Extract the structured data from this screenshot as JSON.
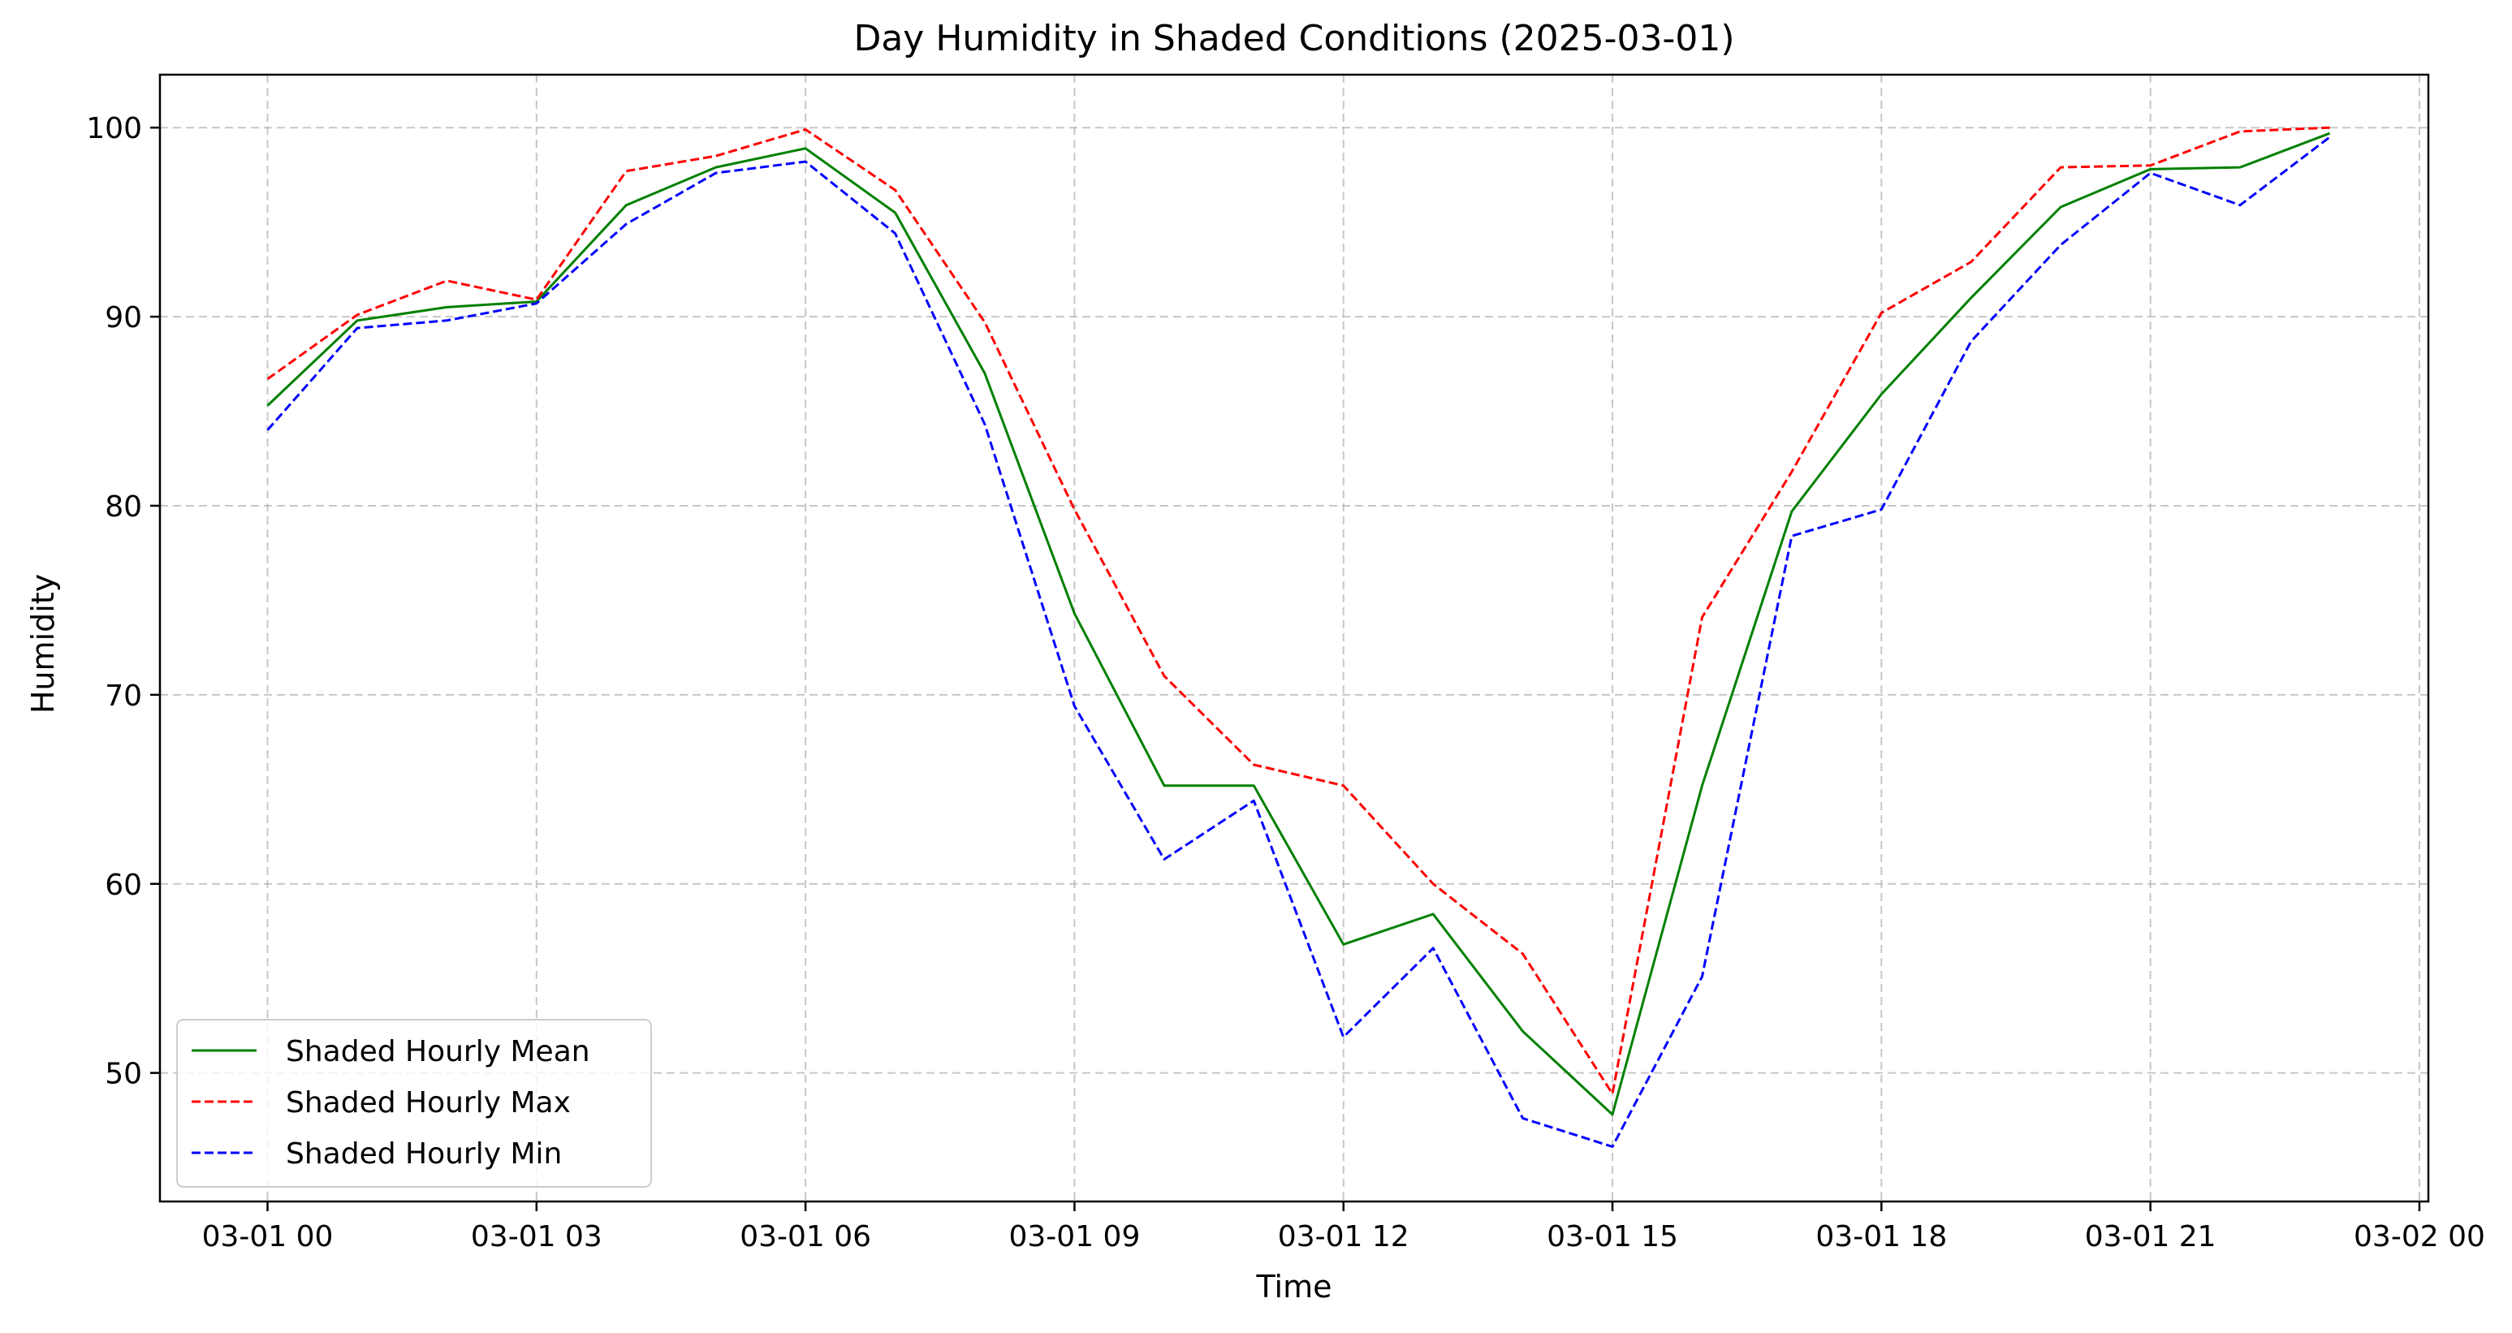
{
  "chart_data": {
    "type": "line",
    "title": "Day Humidity in Shaded Conditions (2025-03-01)",
    "xlabel": "Time",
    "ylabel": "Humidity",
    "x": [
      "03-01 00",
      "03-01 01",
      "03-01 02",
      "03-01 03",
      "03-01 04",
      "03-01 05",
      "03-01 06",
      "03-01 07",
      "03-01 08",
      "03-01 09",
      "03-01 10",
      "03-01 11",
      "03-01 12",
      "03-01 13",
      "03-01 14",
      "03-01 15",
      "03-01 16",
      "03-01 17",
      "03-01 18",
      "03-01 19",
      "03-01 20",
      "03-01 21",
      "03-01 22",
      "03-01 23"
    ],
    "x_hours": [
      0,
      1,
      2,
      3,
      4,
      5,
      6,
      7,
      8,
      9,
      10,
      11,
      12,
      13,
      14,
      15,
      16,
      17,
      18,
      19,
      20,
      21,
      22,
      23
    ],
    "xlim_hours": [
      -1.2,
      24.1
    ],
    "ylim": [
      43.2,
      102.8
    ],
    "xticks": [
      {
        "hour": 0,
        "label": "03-01 00"
      },
      {
        "hour": 3,
        "label": "03-01 03"
      },
      {
        "hour": 6,
        "label": "03-01 06"
      },
      {
        "hour": 9,
        "label": "03-01 09"
      },
      {
        "hour": 12,
        "label": "03-01 12"
      },
      {
        "hour": 15,
        "label": "03-01 15"
      },
      {
        "hour": 18,
        "label": "03-01 18"
      },
      {
        "hour": 21,
        "label": "03-01 21"
      },
      {
        "hour": 24,
        "label": "03-02 00"
      }
    ],
    "yticks": [
      {
        "value": 50,
        "label": "50"
      },
      {
        "value": 60,
        "label": "60"
      },
      {
        "value": 70,
        "label": "70"
      },
      {
        "value": 80,
        "label": "80"
      },
      {
        "value": 90,
        "label": "90"
      },
      {
        "value": 100,
        "label": "100"
      }
    ],
    "grid": true,
    "legend_position": "lower-left",
    "series": [
      {
        "name": "Shaded Hourly Mean",
        "color": "#008000",
        "style": "solid",
        "values": [
          85.3,
          89.8,
          90.5,
          90.8,
          95.9,
          97.9,
          98.9,
          95.5,
          87.0,
          74.3,
          65.2,
          65.2,
          56.8,
          58.4,
          52.2,
          47.8,
          65.2,
          79.7,
          85.9,
          91.0,
          95.8,
          97.8,
          97.9,
          99.7
        ]
      },
      {
        "name": "Shaded Hourly Max",
        "color": "#ff0000",
        "style": "dashed",
        "values": [
          86.7,
          90.1,
          91.9,
          90.9,
          97.7,
          98.5,
          99.9,
          96.7,
          89.7,
          79.8,
          71.0,
          66.3,
          65.2,
          60.0,
          56.3,
          48.9,
          74.1,
          81.8,
          90.2,
          92.9,
          97.9,
          98.0,
          99.8,
          100.0
        ]
      },
      {
        "name": "Shaded Hourly Min",
        "color": "#0000ff",
        "style": "dashed",
        "values": [
          84.0,
          89.4,
          89.8,
          90.7,
          94.9,
          97.6,
          98.2,
          94.4,
          84.3,
          69.4,
          61.3,
          64.4,
          51.9,
          56.6,
          47.6,
          46.1,
          55.1,
          78.4,
          79.8,
          88.7,
          93.8,
          97.6,
          95.9,
          99.5
        ]
      }
    ]
  }
}
